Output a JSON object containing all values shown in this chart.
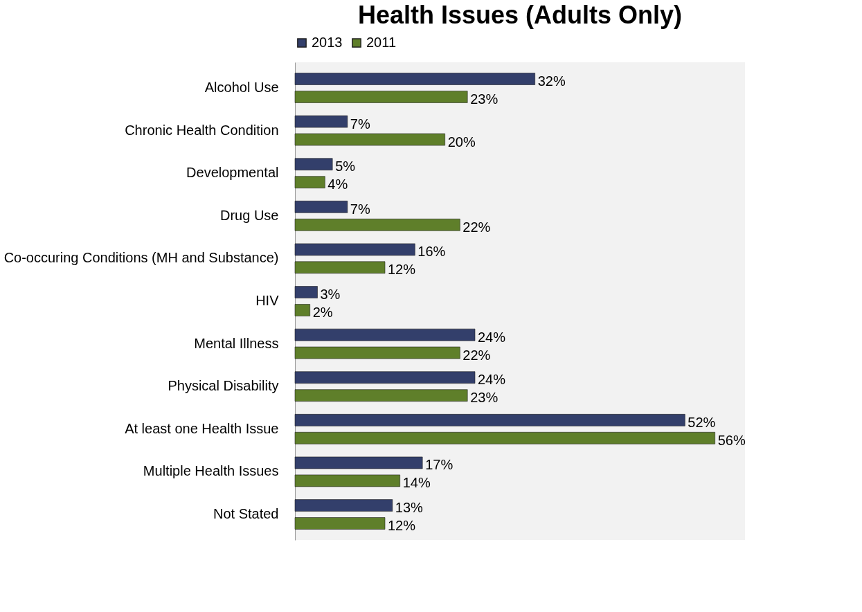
{
  "chart_data": {
    "type": "bar",
    "orientation": "horizontal",
    "title": "Health Issues (Adults Only)",
    "categories": [
      "Alcohol Use",
      "Chronic Health Condition",
      "Developmental",
      "Drug Use",
      "Co-occuring Conditions (MH and Substance)",
      "HIV",
      "Mental Illness",
      "Physical Disability",
      "At least one Health Issue",
      "Multiple Health Issues",
      "Not Stated"
    ],
    "series": [
      {
        "name": "2013",
        "color": "#333f6b",
        "values": [
          32,
          7,
          5,
          7,
          16,
          3,
          24,
          24,
          52,
          17,
          13
        ],
        "value_labels": [
          "32%",
          "7%",
          "5%",
          "7%",
          "16%",
          "3%",
          "24%",
          "24%",
          "52%",
          "17%",
          "13%"
        ]
      },
      {
        "name": "2011",
        "color": "#5f7f2a",
        "values": [
          23,
          20,
          4,
          22,
          12,
          2,
          22,
          23,
          56,
          14,
          12
        ],
        "value_labels": [
          "23%",
          "20%",
          "4%",
          "22%",
          "12%",
          "2%",
          "22%",
          "23%",
          "56%",
          "14%",
          "12%"
        ]
      }
    ],
    "xlim": [
      0,
      60
    ],
    "legend": "top",
    "grid": false,
    "tick_labels": "y"
  }
}
